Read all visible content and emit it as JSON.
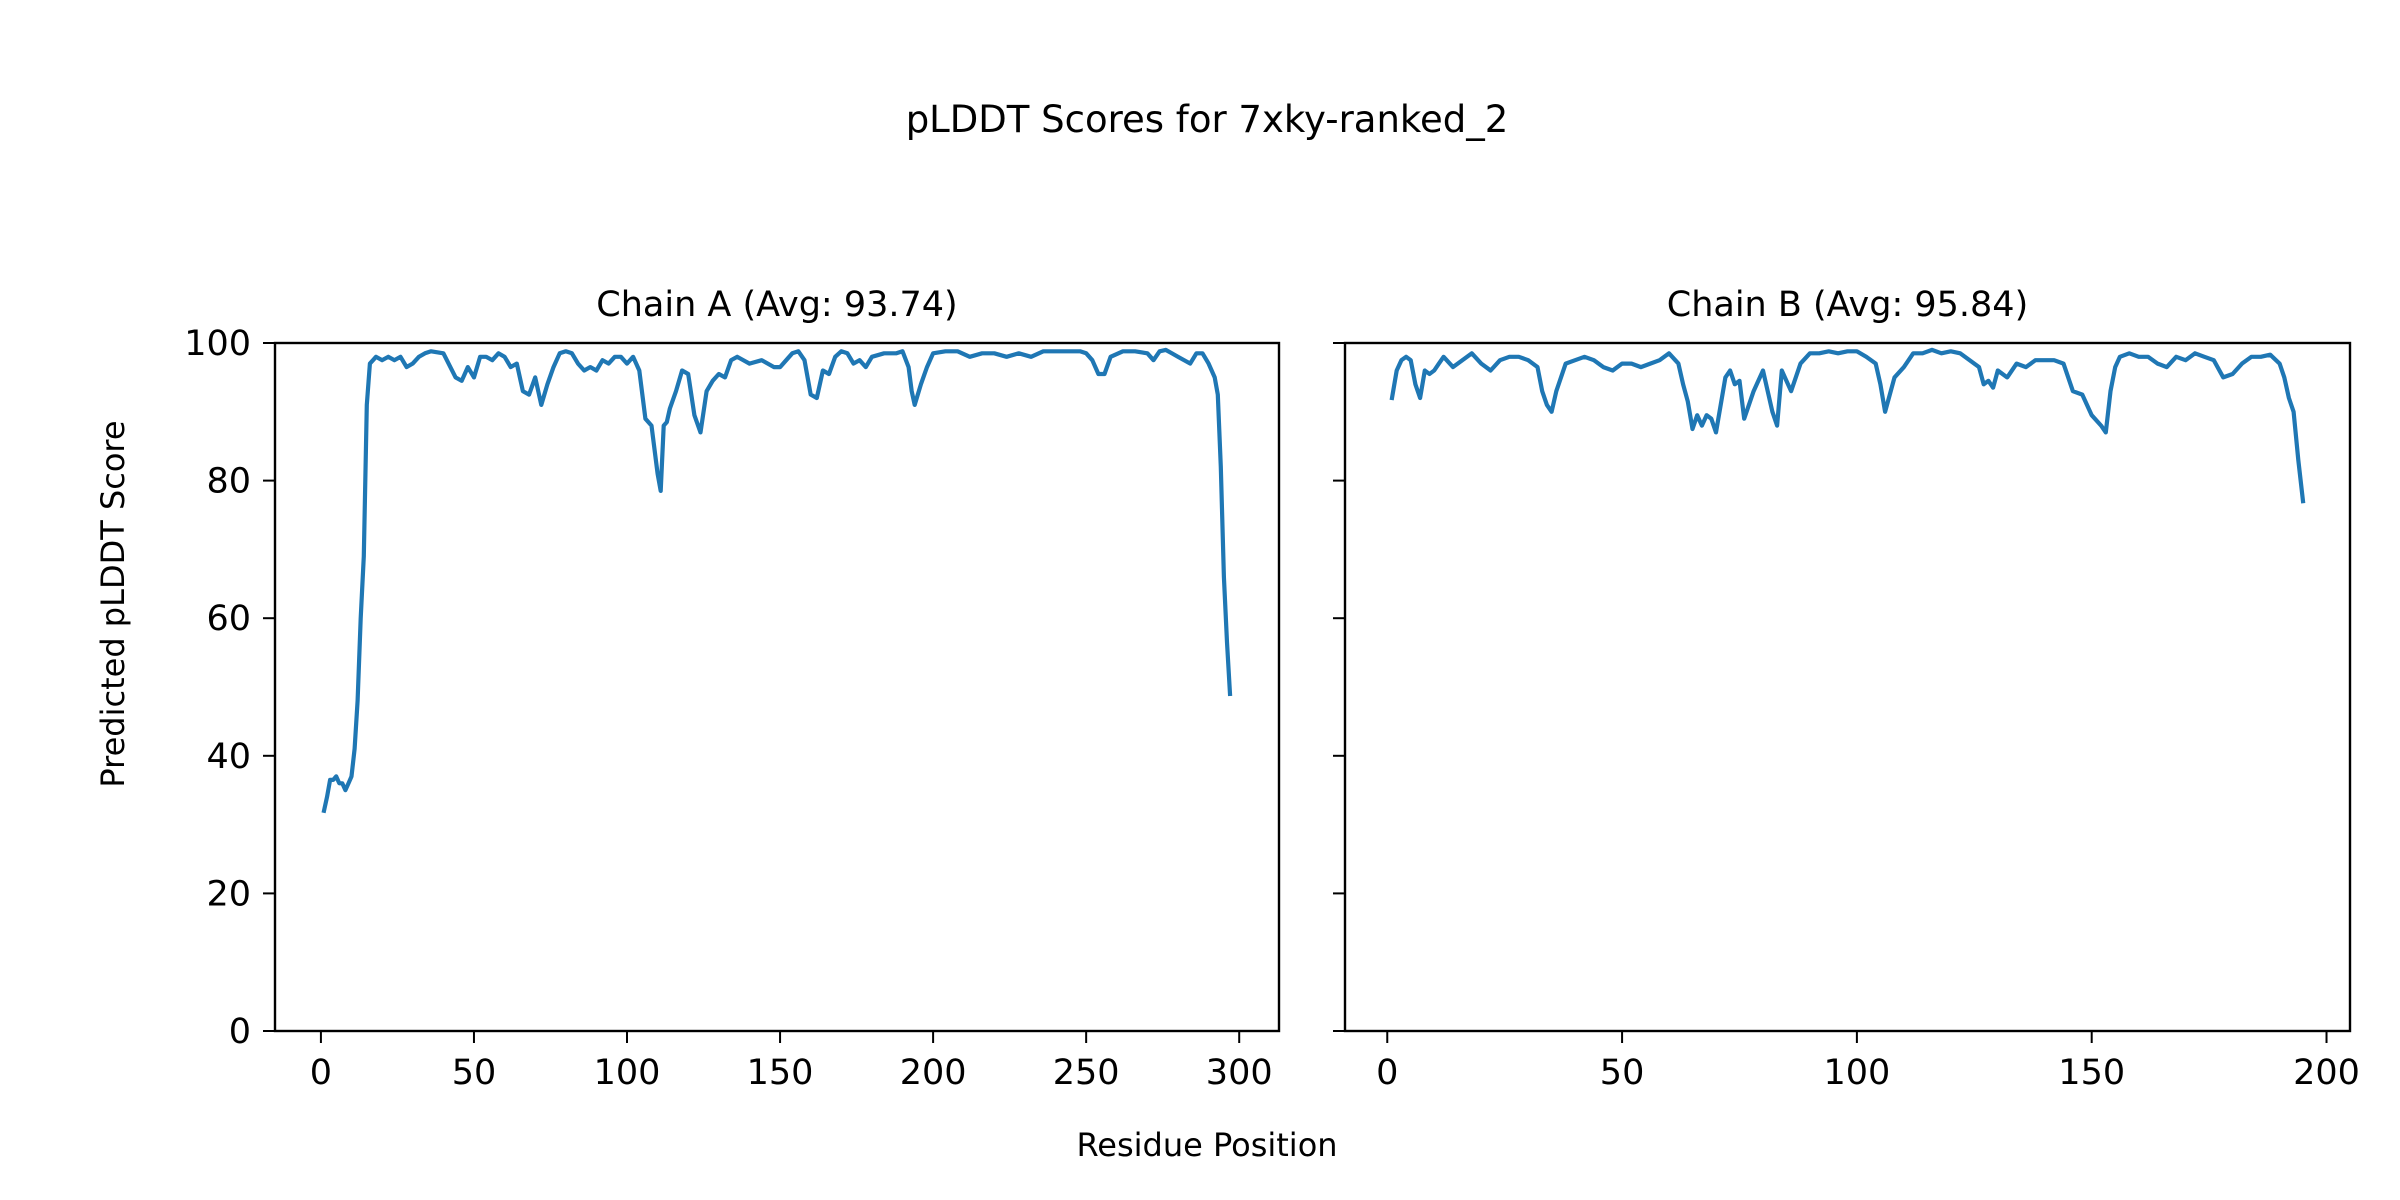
{
  "figure": {
    "title": "pLDDT Scores for 7xky-ranked_2",
    "xlabel": "Residue Position",
    "ylabel": "Predicted pLDDT Score",
    "line_color": "#1f77b4",
    "axis_color": "#000000",
    "background": "#ffffff"
  },
  "chart_data": [
    {
      "type": "line",
      "title": "Chain A (Avg: 93.74)",
      "xlim": [
        -15,
        313
      ],
      "ylim": [
        0,
        100
      ],
      "xticks": [
        0,
        50,
        100,
        150,
        200,
        250,
        300
      ],
      "yticks": [
        0,
        20,
        40,
        60,
        80,
        100
      ],
      "show_ytick_labels": true,
      "grid": false,
      "series": [
        {
          "x": [
            1,
            2,
            3,
            4,
            5,
            6,
            7,
            8,
            9,
            10,
            11,
            12,
            13,
            14,
            15,
            16,
            17,
            18,
            20,
            22,
            24,
            26,
            28,
            30,
            32,
            34,
            36,
            40,
            44,
            46,
            48,
            50,
            52,
            54,
            56,
            58,
            60,
            62,
            64,
            66,
            68,
            70,
            72,
            74,
            76,
            78,
            80,
            82,
            84,
            86,
            88,
            90,
            92,
            94,
            96,
            98,
            100,
            102,
            104,
            106,
            108,
            110,
            111,
            112,
            113,
            114,
            116,
            118,
            120,
            122,
            124,
            126,
            128,
            130,
            132,
            134,
            136,
            138,
            140,
            144,
            148,
            150,
            152,
            154,
            156,
            158,
            160,
            162,
            164,
            166,
            168,
            170,
            172,
            174,
            176,
            178,
            180,
            184,
            188,
            190,
            192,
            193,
            194,
            196,
            198,
            200,
            204,
            208,
            212,
            216,
            220,
            224,
            228,
            232,
            236,
            240,
            244,
            248,
            250,
            252,
            254,
            256,
            258,
            262,
            266,
            270,
            272,
            274,
            276,
            278,
            280,
            282,
            284,
            286,
            288,
            290,
            292,
            293,
            294,
            295,
            296,
            297
          ],
          "y": [
            32,
            34,
            36.5,
            36.5,
            37,
            36,
            36,
            35,
            36,
            37,
            41,
            48,
            60,
            69,
            91,
            97,
            97.5,
            98,
            97.5,
            98,
            97.5,
            98,
            96.5,
            97,
            98,
            98.5,
            98.8,
            98.5,
            95,
            94.5,
            96.5,
            95,
            98,
            98,
            97.5,
            98.5,
            98,
            96.5,
            97,
            93,
            92.5,
            95,
            91,
            94,
            96.5,
            98.5,
            98.8,
            98.5,
            97,
            96,
            96.5,
            96,
            97.5,
            97,
            98,
            98,
            97,
            98,
            96,
            89,
            88,
            81,
            78.5,
            88,
            88.5,
            90.5,
            93,
            96,
            95.5,
            89.5,
            87,
            93,
            94.5,
            95.5,
            95,
            97.5,
            98,
            97.5,
            97,
            97.5,
            96.5,
            96.5,
            97.5,
            98.5,
            98.8,
            97.5,
            92.5,
            92,
            96,
            95.5,
            98,
            98.8,
            98.5,
            97,
            97.5,
            96.5,
            98,
            98.5,
            98.5,
            98.8,
            96.5,
            93,
            91,
            94,
            96.5,
            98.5,
            98.8,
            98.8,
            98,
            98.5,
            98.5,
            98,
            98.5,
            98,
            98.8,
            98.8,
            98.8,
            98.8,
            98.5,
            97.5,
            95.5,
            95.5,
            98,
            98.8,
            98.8,
            98.5,
            97.5,
            98.8,
            99,
            98.5,
            98,
            97.5,
            97,
            98.5,
            98.5,
            97,
            95,
            92.5,
            82,
            66,
            56.5,
            49
          ]
        }
      ]
    },
    {
      "type": "line",
      "title": "Chain B (Avg: 95.84)",
      "xlim": [
        -9,
        205
      ],
      "ylim": [
        0,
        100
      ],
      "xticks": [
        0,
        50,
        100,
        150,
        200
      ],
      "yticks": [
        0,
        20,
        40,
        60,
        80,
        100
      ],
      "show_ytick_labels": false,
      "grid": false,
      "series": [
        {
          "x": [
            1,
            2,
            3,
            4,
            5,
            6,
            7,
            8,
            9,
            10,
            11,
            12,
            14,
            16,
            18,
            20,
            22,
            24,
            26,
            28,
            30,
            32,
            33,
            34,
            35,
            36,
            38,
            40,
            42,
            44,
            46,
            48,
            50,
            52,
            54,
            56,
            58,
            60,
            62,
            63,
            64,
            65,
            66,
            67,
            68,
            69,
            70,
            72,
            73,
            74,
            75,
            76,
            78,
            80,
            81,
            82,
            83,
            84,
            86,
            88,
            90,
            92,
            94,
            96,
            98,
            100,
            102,
            104,
            105,
            106,
            108,
            110,
            112,
            114,
            116,
            118,
            120,
            122,
            124,
            126,
            127,
            128,
            129,
            130,
            132,
            134,
            136,
            138,
            140,
            142,
            144,
            146,
            148,
            150,
            152,
            153,
            154,
            155,
            156,
            158,
            160,
            162,
            164,
            166,
            168,
            170,
            172,
            174,
            176,
            178,
            180,
            182,
            184,
            186,
            188,
            190,
            191,
            192,
            193,
            194,
            195
          ],
          "y": [
            92,
            96,
            97.5,
            98,
            97.5,
            94,
            92,
            96,
            95.5,
            96,
            97,
            98,
            96.5,
            97.5,
            98.5,
            97,
            96,
            97.5,
            98,
            98,
            97.5,
            96.5,
            93,
            91,
            90,
            93,
            97,
            97.5,
            98,
            97.5,
            96.5,
            96,
            97,
            97,
            96.5,
            97,
            97.5,
            98.5,
            97,
            94,
            91.5,
            87.5,
            89.5,
            88,
            89.5,
            89,
            87,
            95,
            96,
            94,
            94.5,
            89,
            93,
            96,
            93,
            90,
            88,
            96,
            93,
            97,
            98.5,
            98.5,
            98.8,
            98.5,
            98.8,
            98.8,
            98,
            97,
            94,
            90,
            95,
            96.5,
            98.5,
            98.5,
            99,
            98.5,
            98.8,
            98.5,
            97.5,
            96.5,
            94,
            94.5,
            93.5,
            96,
            95,
            97,
            96.5,
            97.5,
            97.5,
            97.5,
            97,
            93,
            92.5,
            89.5,
            88,
            87,
            93,
            96.5,
            98,
            98.5,
            98,
            98,
            97,
            96.5,
            98,
            97.5,
            98.5,
            98,
            97.5,
            95,
            95.5,
            97,
            98,
            98,
            98.3,
            97,
            95,
            92,
            90,
            83,
            77
          ]
        }
      ]
    }
  ]
}
